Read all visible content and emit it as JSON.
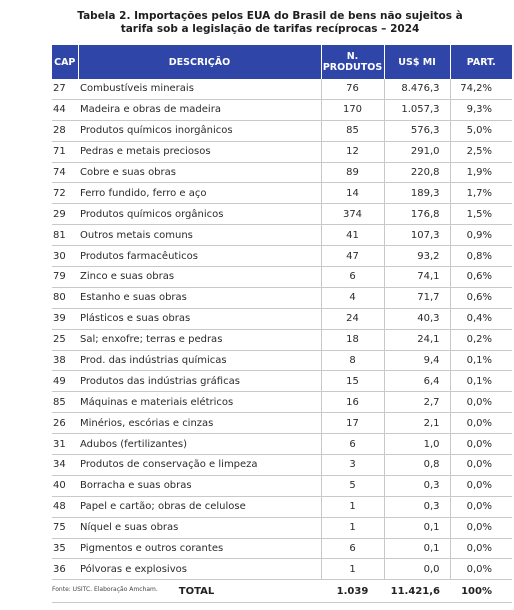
{
  "title": {
    "line1": "Tabela 2. Importações pelos EUA do Brasil de bens não sujeitos à",
    "line2": "tarifa sob a legislação de tarifas recíprocas – 2024"
  },
  "table": {
    "headers": {
      "cap": "CAP",
      "descricao": "DESCRIÇÃO",
      "produtos_line1": "N.",
      "produtos_line2": "PRODUTOS",
      "us_mi": "US$ MI",
      "part": "PART."
    },
    "header_color": "#2f45a8",
    "rows": [
      {
        "cap": "27",
        "descricao": "Combustíveis minerais",
        "produtos": "76",
        "us_mi": "8.476,3",
        "part": "74,2%"
      },
      {
        "cap": "44",
        "descricao": "Madeira e obras de madeira",
        "produtos": "170",
        "us_mi": "1.057,3",
        "part": "9,3%"
      },
      {
        "cap": "28",
        "descricao": "Produtos químicos inorgânicos",
        "produtos": "85",
        "us_mi": "576,3",
        "part": "5,0%"
      },
      {
        "cap": "71",
        "descricao": "Pedras e metais preciosos",
        "produtos": "12",
        "us_mi": "291,0",
        "part": "2,5%"
      },
      {
        "cap": "74",
        "descricao": "Cobre e suas obras",
        "produtos": "89",
        "us_mi": "220,8",
        "part": "1,9%"
      },
      {
        "cap": "72",
        "descricao": "Ferro fundido, ferro e aço",
        "produtos": "14",
        "us_mi": "189,3",
        "part": "1,7%"
      },
      {
        "cap": "29",
        "descricao": "Produtos químicos orgânicos",
        "produtos": "374",
        "us_mi": "176,8",
        "part": "1,5%"
      },
      {
        "cap": "81",
        "descricao": "Outros metais comuns",
        "produtos": "41",
        "us_mi": "107,3",
        "part": "0,9%"
      },
      {
        "cap": "30",
        "descricao": "Produtos farmacêuticos",
        "produtos": "47",
        "us_mi": "93,2",
        "part": "0,8%"
      },
      {
        "cap": "79",
        "descricao": "Zinco e suas obras",
        "produtos": "6",
        "us_mi": "74,1",
        "part": "0,6%"
      },
      {
        "cap": "80",
        "descricao": "Estanho e suas obras",
        "produtos": "4",
        "us_mi": "71,7",
        "part": "0,6%"
      },
      {
        "cap": "39",
        "descricao": "Plásticos e suas obras",
        "produtos": "24",
        "us_mi": "40,3",
        "part": "0,4%"
      },
      {
        "cap": "25",
        "descricao": "Sal; enxofre; terras e pedras",
        "produtos": "18",
        "us_mi": "24,1",
        "part": "0,2%"
      },
      {
        "cap": "38",
        "descricao": "Prod. das indústrias químicas",
        "produtos": "8",
        "us_mi": "9,4",
        "part": "0,1%"
      },
      {
        "cap": "49",
        "descricao": "Produtos das indústrias gráficas",
        "produtos": "15",
        "us_mi": "6,4",
        "part": "0,1%"
      },
      {
        "cap": "85",
        "descricao": "Máquinas e materiais elétricos",
        "produtos": "16",
        "us_mi": "2,7",
        "part": "0,0%"
      },
      {
        "cap": "26",
        "descricao": "Minérios, escórias e cinzas",
        "produtos": "17",
        "us_mi": "2,1",
        "part": "0,0%"
      },
      {
        "cap": "31",
        "descricao": "Adubos (fertilizantes)",
        "produtos": "6",
        "us_mi": "1,0",
        "part": "0,0%"
      },
      {
        "cap": "34",
        "descricao": "Produtos de conservação e limpeza",
        "produtos": "3",
        "us_mi": "0,8",
        "part": "0,0%"
      },
      {
        "cap": "40",
        "descricao": "Borracha e suas obras",
        "produtos": "5",
        "us_mi": "0,3",
        "part": "0,0%"
      },
      {
        "cap": "48",
        "descricao": "Papel e cartão; obras de celulose",
        "produtos": "1",
        "us_mi": "0,3",
        "part": "0,0%"
      },
      {
        "cap": "75",
        "descricao": "Níquel e suas obras",
        "produtos": "1",
        "us_mi": "0,1",
        "part": "0,0%"
      },
      {
        "cap": "35",
        "descricao": "Pigmentos e outros corantes",
        "produtos": "6",
        "us_mi": "0,1",
        "part": "0,0%"
      },
      {
        "cap": "36",
        "descricao": "Pólvoras e explosivos",
        "produtos": "1",
        "us_mi": "0,0",
        "part": "0,0%"
      }
    ],
    "total": {
      "label": "TOTAL",
      "produtos": "1.039",
      "us_mi": "11.421,6",
      "part": "100%"
    }
  },
  "source": "Fonte: USITC. Elaboração Amcham."
}
